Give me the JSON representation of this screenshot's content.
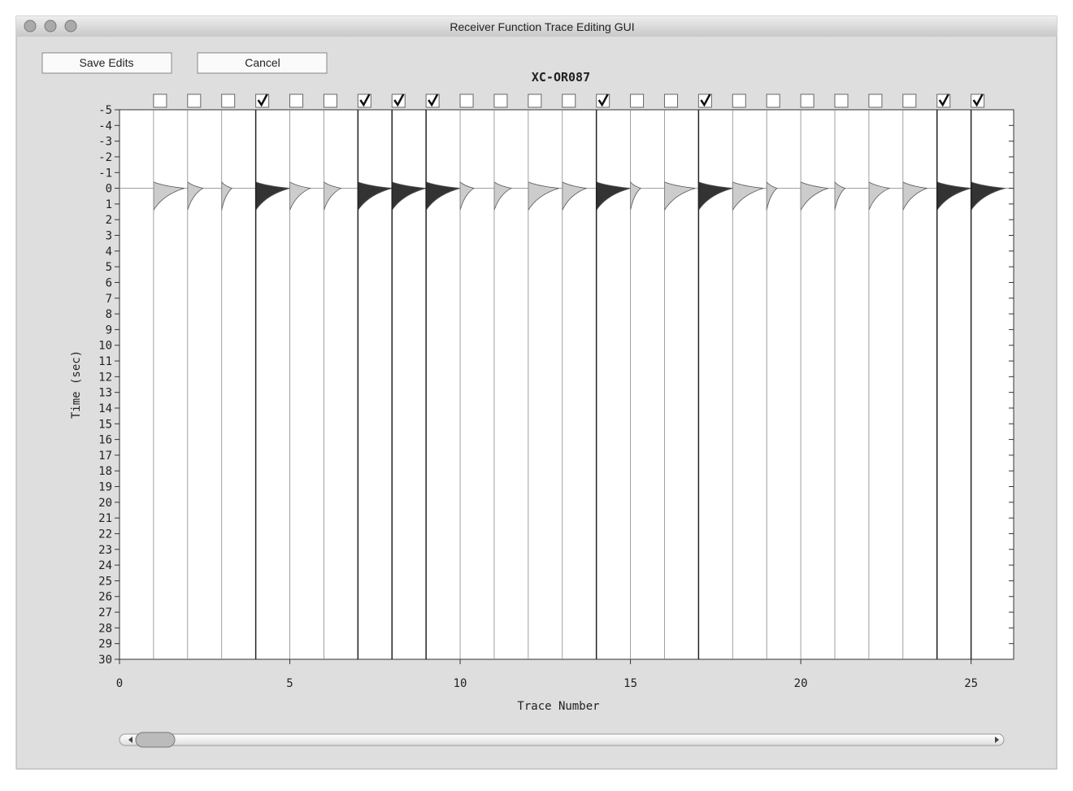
{
  "window": {
    "title": "Receiver Function Trace Editing GUI"
  },
  "buttons": [
    "Save Edits",
    "Cancel"
  ],
  "chart_data": {
    "type": "wiggle",
    "title": "XC-OR087",
    "xlabel": "Trace Number",
    "ylabel": "Time (sec)",
    "x": [
      1,
      2,
      3,
      4,
      5,
      6,
      7,
      8,
      9,
      10,
      11,
      12,
      13,
      14,
      15,
      16,
      17,
      18,
      19,
      20,
      21,
      22,
      23,
      24,
      25
    ],
    "values": [
      0.9,
      0.45,
      0.3,
      1.0,
      0.6,
      0.5,
      1.0,
      1.0,
      1.0,
      0.4,
      0.5,
      0.9,
      0.7,
      1.0,
      0.3,
      0.9,
      1.0,
      0.9,
      0.3,
      0.8,
      0.3,
      0.6,
      0.7,
      1.0,
      1.0
    ],
    "checked": [
      false,
      false,
      false,
      true,
      false,
      false,
      true,
      true,
      true,
      false,
      false,
      false,
      false,
      true,
      false,
      false,
      true,
      false,
      false,
      false,
      false,
      false,
      false,
      true,
      true
    ],
    "color_checked": "#333333",
    "color_unchecked": "#cccccc",
    "xlim": [
      0,
      26.25
    ],
    "ylim": [
      -5,
      30
    ],
    "y_inverted": true,
    "xticks": [
      0,
      5,
      10,
      15,
      20,
      25
    ],
    "yticks": [
      -5,
      -4,
      -3,
      -2,
      -1,
      0,
      1,
      2,
      3,
      4,
      5,
      6,
      7,
      8,
      9,
      10,
      11,
      12,
      13,
      14,
      15,
      16,
      17,
      18,
      19,
      20,
      21,
      22,
      23,
      24,
      25,
      26,
      27,
      28,
      29,
      30
    ]
  }
}
